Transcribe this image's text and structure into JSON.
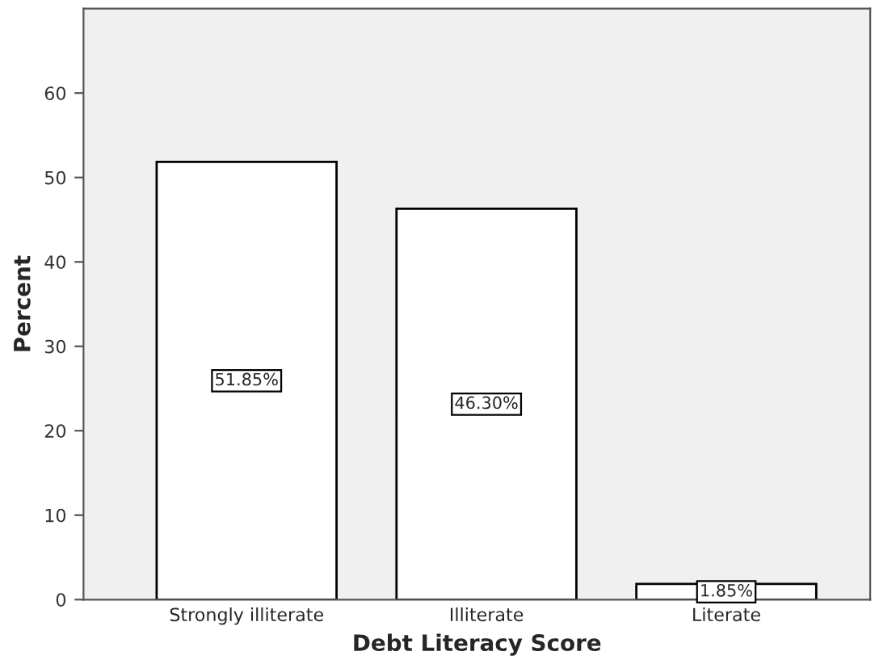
{
  "chart_data": {
    "type": "bar",
    "xlabel": "Debt Literacy Score",
    "ylabel": "Percent",
    "categories": [
      "Strongly illiterate",
      "Illiterate",
      "Literate"
    ],
    "values": [
      51.85,
      46.3,
      1.85
    ],
    "value_labels": [
      "51.85%",
      "46.30%",
      "1.85%"
    ],
    "color": "#ffffff",
    "ylim": [
      0,
      70
    ],
    "yticks": [
      0,
      10,
      20,
      30,
      40,
      50,
      60
    ],
    "grid": false,
    "legend": false
  }
}
